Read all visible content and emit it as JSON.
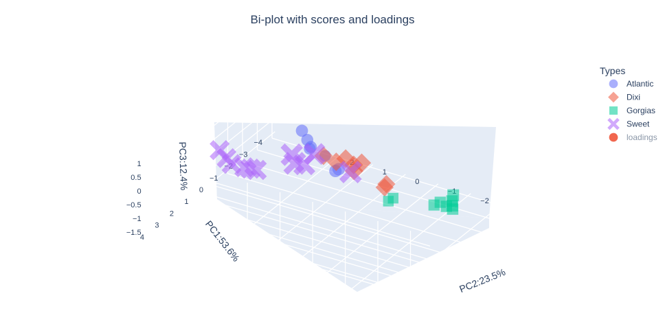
{
  "chart_data": {
    "type": "scatter",
    "title": "Bi-plot with scores and loadings",
    "legend_title": "Types",
    "legend_position": "top-right",
    "axes": {
      "x": {
        "label": "PC1:53.6%",
        "ticks": [
          "4",
          "3",
          "2",
          "1",
          "0",
          "−1",
          "−2",
          "−3",
          "−4"
        ]
      },
      "y": {
        "label": "PC2:23.5%",
        "ticks": [
          "2",
          "1",
          "0",
          "−1",
          "−2"
        ]
      },
      "z": {
        "label": "PC3:12.4%",
        "ticks": [
          "1",
          "0.5",
          "0",
          "−0.5",
          "−1",
          "−1.5"
        ]
      }
    },
    "series": [
      {
        "name": "Atlantic",
        "symbol": "circle",
        "color": "#636efa",
        "points": [
          [
            -0.5,
            1.5,
            1.0
          ],
          [
            -0.2,
            1.2,
            0.9
          ],
          [
            0.0,
            1.0,
            0.8
          ],
          [
            0.3,
            0.9,
            0.9
          ],
          [
            0.8,
            0.2,
            1.1
          ],
          [
            -1.0,
            0.6,
            -0.3
          ],
          [
            -1.0,
            0.7,
            -0.4
          ]
        ]
      },
      {
        "name": "Dixi",
        "symbol": "diamond",
        "color": "#ef553b",
        "points": [
          [
            -2.4,
            1.7,
            -0.8
          ],
          [
            -2.6,
            1.4,
            -1.0
          ],
          [
            -2.8,
            1.2,
            -0.9
          ],
          [
            -2.9,
            1.0,
            -1.1
          ],
          [
            -3.0,
            0.8,
            -1.0
          ],
          [
            -2.7,
            0.9,
            -1.2
          ],
          [
            -1.8,
            -0.5,
            -0.8
          ],
          [
            -1.9,
            -0.4,
            -1.0
          ]
        ]
      },
      {
        "name": "Gorgias",
        "symbol": "square",
        "color": "#00cc96",
        "points": [
          [
            1.6,
            -2.1,
            0.6
          ],
          [
            1.5,
            -2.2,
            0.7
          ],
          [
            0.5,
            -3.0,
            0.3
          ],
          [
            0.3,
            -3.1,
            0.35
          ],
          [
            0.1,
            -3.2,
            0.15
          ],
          [
            -0.1,
            -3.3,
            0.0
          ],
          [
            -0.3,
            -3.2,
            0.0
          ],
          [
            -0.5,
            -3.1,
            0.05
          ],
          [
            -0.8,
            -3.0,
            0.1
          ]
        ]
      },
      {
        "name": "Sweet",
        "symbol": "x",
        "color": "#ab63fa",
        "points": [
          [
            2.2,
            2.8,
            1.0
          ],
          [
            2.4,
            2.5,
            0.9
          ],
          [
            2.5,
            2.3,
            0.8
          ],
          [
            2.3,
            2.0,
            0.7
          ],
          [
            2.1,
            1.9,
            0.6
          ],
          [
            1.9,
            1.8,
            0.5
          ],
          [
            0.2,
            0.8,
            0.7
          ],
          [
            0.0,
            1.2,
            0.1
          ],
          [
            -0.7,
            1.9,
            -0.1
          ],
          [
            -0.9,
            1.9,
            -0.5
          ],
          [
            -0.7,
            0.1,
            -0.1
          ]
        ]
      },
      {
        "name": "loadings",
        "symbol": "circle",
        "color": "#ef553b",
        "legend_muted": true,
        "points": []
      }
    ]
  }
}
